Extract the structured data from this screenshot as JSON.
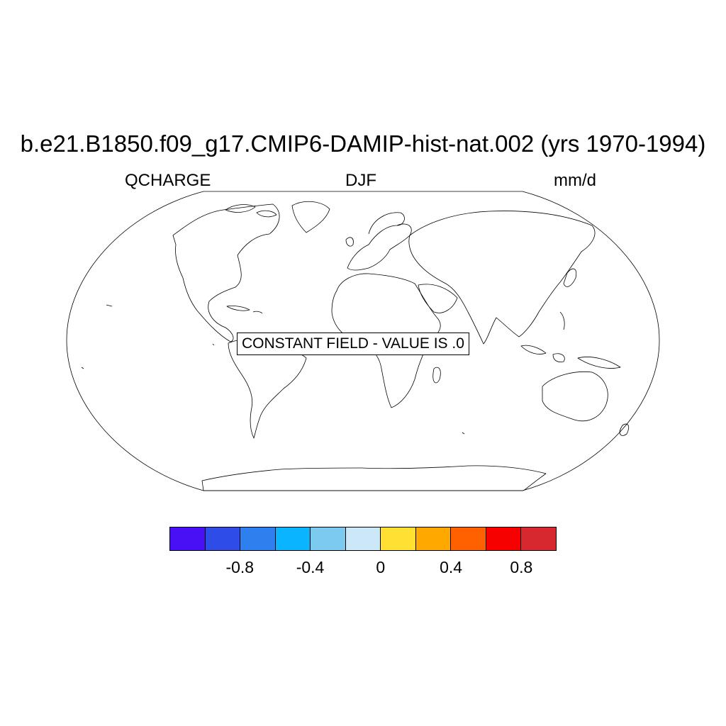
{
  "title": "b.e21.B1850.f09_g17.CMIP6-DAMIP-hist-nat.002 (yrs 1970-1994)",
  "variable_label": "QCHARGE",
  "season_label": "DJF",
  "units_label": "mm/d",
  "map": {
    "projection": "robinson",
    "message": "CONSTANT FIELD - VALUE IS .0",
    "value": 0.0
  },
  "colorbar": {
    "colors": [
      "#4a10f5",
      "#2e4de8",
      "#2e80ee",
      "#0bb4ff",
      "#7ccaf0",
      "#cce8f8",
      "#ffe033",
      "#ffa800",
      "#ff6000",
      "#f70000",
      "#d8282f"
    ],
    "tick_labels": [
      "-0.8",
      "-0.4",
      "0",
      "0.4",
      "0.8"
    ],
    "tick_values": [
      -0.8,
      -0.4,
      0,
      0.4,
      0.8
    ],
    "range": [
      -1.0,
      1.0
    ]
  }
}
